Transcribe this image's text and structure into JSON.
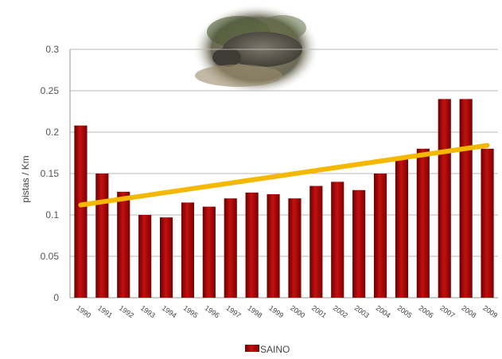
{
  "chart_data": {
    "type": "bar",
    "title": "",
    "xlabel": "",
    "ylabel": "pistas / Km",
    "ylim": [
      0,
      0.3
    ],
    "yticks": [
      "0",
      "0.05",
      "0.1",
      "0.15",
      "0.2",
      "0.25",
      "0.3"
    ],
    "categories": [
      "1990",
      "1991",
      "1992",
      "1993",
      "1994",
      "1995",
      "1996",
      "1997",
      "1998",
      "1999",
      "2000",
      "2001",
      "2002",
      "2003",
      "2004",
      "2005",
      "2006",
      "2007",
      "2008",
      "2009"
    ],
    "series": [
      {
        "name": "SAINO",
        "color": "#b00000",
        "values": [
          0.208,
          0.15,
          0.128,
          0.1,
          0.097,
          0.115,
          0.11,
          0.12,
          0.127,
          0.125,
          0.12,
          0.135,
          0.14,
          0.13,
          0.15,
          0.17,
          0.18,
          0.24,
          0.24,
          0.18
        ]
      }
    ],
    "trendline": {
      "color": "#f5b800",
      "start": 0.112,
      "end": 0.184
    },
    "grid": true,
    "legend": "bottom"
  }
}
